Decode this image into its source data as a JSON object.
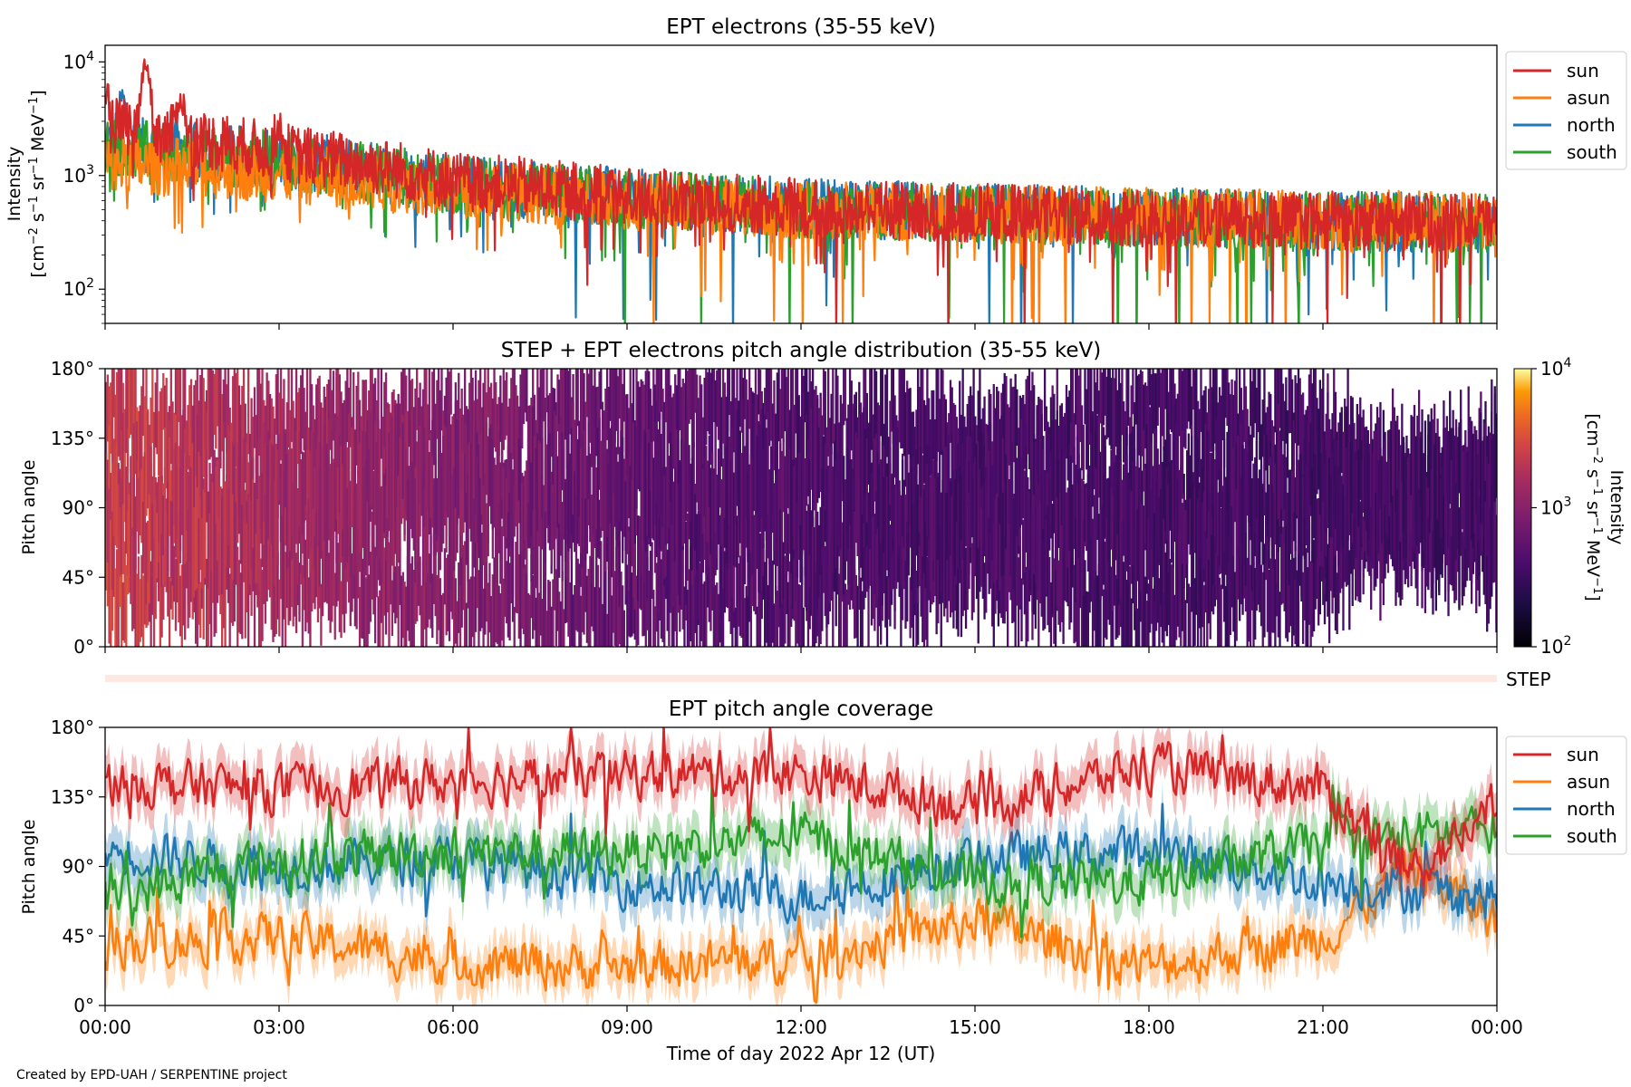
{
  "footer": "Created by EPD-UAH / SERPENTINE project",
  "xaxis": {
    "label": "Time of day 2022 Apr 12 (UT)",
    "ticks": [
      "00:00",
      "03:00",
      "06:00",
      "09:00",
      "12:00",
      "15:00",
      "18:00",
      "21:00",
      "00:00"
    ],
    "range_hours": [
      0,
      24
    ]
  },
  "colors": {
    "sun": "#d62728",
    "asun": "#ff7f0e",
    "north": "#1f77b4",
    "south": "#2ca02c",
    "step_band": "#fde9e1"
  },
  "chart_data": [
    {
      "type": "line",
      "title": "EPT electrons (35-55 keV)",
      "ylabel": "Intensity",
      "yunit_base": "[cm",
      "yunit_parts": [
        "−2",
        " s",
        "−1",
        " sr",
        "−1",
        " MeV",
        "−1",
        "]"
      ],
      "yscale": "log",
      "ylim": [
        50,
        14000
      ],
      "yticks": [
        {
          "value": 10000,
          "base": "10",
          "exp": "4"
        },
        {
          "value": 1000,
          "base": "10",
          "exp": "3"
        },
        {
          "value": 100,
          "base": "10",
          "exp": "2"
        }
      ],
      "legend_position": "outside-right",
      "series": [
        {
          "name": "sun",
          "color": "#d62728",
          "trend": [
            [
              0,
              2800
            ],
            [
              1,
              2300
            ],
            [
              3,
              1600
            ],
            [
              6,
              900
            ],
            [
              9,
              650
            ],
            [
              12,
              520
            ],
            [
              15,
              470
            ],
            [
              18,
              430
            ],
            [
              21,
              400
            ],
            [
              24,
              380
            ]
          ],
          "peaks": [
            [
              0.0,
              5500
            ],
            [
              0.7,
              9800
            ],
            [
              1.3,
              4800
            ],
            [
              3.0,
              2700
            ]
          ]
        },
        {
          "name": "asun",
          "color": "#ff7f0e",
          "trend": [
            [
              0,
              1300
            ],
            [
              1,
              1200
            ],
            [
              3,
              1050
            ],
            [
              6,
              780
            ],
            [
              9,
              600
            ],
            [
              12,
              500
            ],
            [
              15,
              460
            ],
            [
              18,
              430
            ],
            [
              21,
              410
            ],
            [
              24,
              400
            ]
          ],
          "peaks": []
        },
        {
          "name": "north",
          "color": "#1f77b4",
          "trend": [
            [
              0,
              1900
            ],
            [
              1,
              1700
            ],
            [
              3,
              1400
            ],
            [
              6,
              850
            ],
            [
              9,
              640
            ],
            [
              12,
              520
            ],
            [
              15,
              470
            ],
            [
              18,
              430
            ],
            [
              21,
              400
            ],
            [
              24,
              380
            ]
          ],
          "peaks": [
            [
              0.3,
              4800
            ]
          ]
        },
        {
          "name": "south",
          "color": "#2ca02c",
          "trend": [
            [
              0,
              1800
            ],
            [
              1,
              1600
            ],
            [
              3,
              1350
            ],
            [
              6,
              830
            ],
            [
              9,
              630
            ],
            [
              12,
              510
            ],
            [
              15,
              460
            ],
            [
              18,
              420
            ],
            [
              21,
              400
            ],
            [
              24,
              380
            ]
          ],
          "peaks": []
        }
      ]
    },
    {
      "type": "heatmap",
      "title": "STEP + EPT electrons pitch angle distribution (35-55 keV)",
      "ylabel": "Pitch angle",
      "ylim": [
        0,
        180
      ],
      "yticks": [
        "0°",
        "45°",
        "90°",
        "135°",
        "180°"
      ],
      "colorscale": "plasma-like (black-purple-red-orange-yellow)",
      "colorbar": {
        "label": "Intensity",
        "unit_base": "[cm",
        "unit_parts": [
          "−2",
          " s",
          "−1",
          " sr",
          "−1",
          " MeV",
          "−1",
          "]"
        ],
        "scale": "log",
        "range": [
          100,
          10000
        ],
        "ticks": [
          {
            "value": 10000,
            "base": "10",
            "exp": "4"
          },
          {
            "value": 1000,
            "base": "10",
            "exp": "3"
          },
          {
            "value": 100,
            "base": "10",
            "exp": "2"
          }
        ]
      },
      "intensity_trend": [
        [
          0,
          2500
        ],
        [
          1.5,
          2000
        ],
        [
          3,
          1500
        ],
        [
          5,
          1100
        ],
        [
          6.5,
          900
        ],
        [
          8,
          650
        ],
        [
          10,
          500
        ],
        [
          12,
          420
        ],
        [
          15,
          400
        ],
        [
          18,
          380
        ],
        [
          21,
          370
        ],
        [
          24,
          360
        ]
      ],
      "step_label": "STEP"
    },
    {
      "type": "line",
      "title": "EPT pitch angle coverage",
      "ylabel": "Pitch angle",
      "ylim": [
        0,
        180
      ],
      "yticks": [
        "0°",
        "45°",
        "90°",
        "135°",
        "180°"
      ],
      "legend_position": "outside-right",
      "shaded_band_halfwidth_deg": 14,
      "series": [
        {
          "name": "sun",
          "color": "#d62728",
          "trend": [
            [
              0,
              145
            ],
            [
              3,
              140
            ],
            [
              6,
              145
            ],
            [
              9,
              150
            ],
            [
              12,
              150
            ],
            [
              15,
              128
            ],
            [
              18,
              155
            ],
            [
              21,
              140
            ],
            [
              22.5,
              85
            ],
            [
              24,
              130
            ]
          ]
        },
        {
          "name": "asun",
          "color": "#ff7f0e",
          "trend": [
            [
              0,
              40
            ],
            [
              3,
              45
            ],
            [
              6,
              28
            ],
            [
              9,
              25
            ],
            [
              12,
              30
            ],
            [
              15,
              55
            ],
            [
              18,
              25
            ],
            [
              21,
              45
            ],
            [
              22.5,
              90
            ],
            [
              24,
              55
            ]
          ]
        },
        {
          "name": "north",
          "color": "#1f77b4",
          "trend": [
            [
              0,
              100
            ],
            [
              3,
              90
            ],
            [
              6,
              95
            ],
            [
              9,
              80
            ],
            [
              12,
              70
            ],
            [
              15,
              95
            ],
            [
              18,
              100
            ],
            [
              21,
              80
            ],
            [
              24,
              70
            ]
          ]
        },
        {
          "name": "south",
          "color": "#2ca02c",
          "trend": [
            [
              0,
              70
            ],
            [
              3,
              95
            ],
            [
              6,
              100
            ],
            [
              9,
              100
            ],
            [
              12,
              110
            ],
            [
              15,
              80
            ],
            [
              18,
              80
            ],
            [
              21,
              105
            ],
            [
              24,
              115
            ]
          ]
        }
      ]
    }
  ]
}
